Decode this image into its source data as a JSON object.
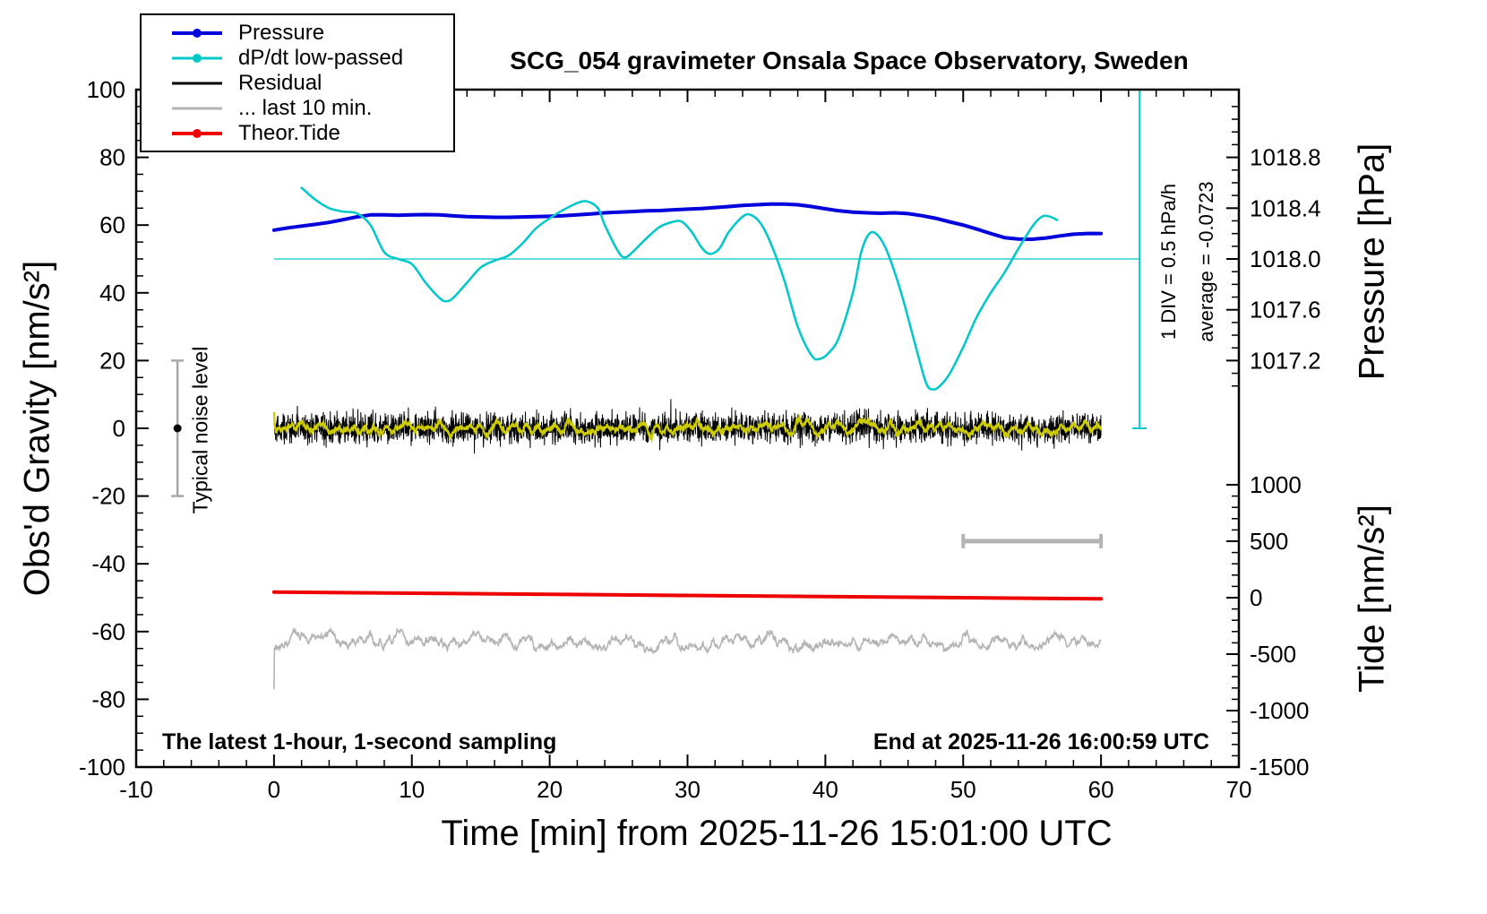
{
  "title": "SCG_054 gravimeter Onsala Space Observatory, Sweden",
  "notes": {
    "left": "The latest 1-hour, 1-second sampling",
    "right": "End at 2025-11-26 16:00:59 UTC"
  },
  "legend": {
    "items": [
      {
        "label": "Pressure",
        "color": "#0000dd",
        "dot": true,
        "thick": true
      },
      {
        "label": "dP/dt low-passed",
        "color": "#00c8c8",
        "dot": true,
        "thick": false
      },
      {
        "label": "Residual",
        "color": "#000000",
        "dot": false,
        "thick": false
      },
      {
        "label": "... last 10 min.",
        "color": "#b4b4b4",
        "dot": false,
        "thick": false
      },
      {
        "label": "Theor.Tide",
        "color": "#ee0000",
        "dot": true,
        "thick": true
      }
    ]
  },
  "chart_data": {
    "type": "line",
    "title": "SCG_054 gravimeter Onsala Space Observatory, Sweden",
    "x_axis": {
      "label": "Time [min] from 2025-11-26 15:01:00 UTC",
      "range": [
        -10,
        70
      ],
      "major_ticks": [
        -10,
        0,
        10,
        20,
        30,
        40,
        50,
        60,
        70
      ],
      "major_labels": [
        "-10",
        "0",
        "10",
        "20",
        "30",
        "40",
        "50",
        "60",
        "70"
      ],
      "minor_step": 2
    },
    "y_left": {
      "label": "Obs'd Gravity [nm/s²]",
      "range": [
        -100,
        100
      ],
      "major_ticks": [
        -100,
        -80,
        -60,
        -40,
        -20,
        0,
        20,
        40,
        60,
        80,
        100
      ],
      "major_labels": [
        "-100",
        "-80",
        "-60",
        "-40",
        "-20",
        "0",
        "20",
        "40",
        "60",
        "80",
        "100"
      ],
      "minor_step": 5
    },
    "y_right_pressure": {
      "label": "Pressure [hPa]",
      "major_ticks": [
        1017.2,
        1017.6,
        1018.0,
        1018.4,
        1018.8
      ],
      "major_labels": [
        "1017.2",
        "1017.6",
        "1018.0",
        "1018.4",
        "1018.8"
      ],
      "minor_step": 0.1,
      "minor_range": [
        1017.0,
        1019.2
      ],
      "value_ref": 1018.0,
      "left_ref": 50,
      "left_per_unit": 37.5
    },
    "y_right_tide": {
      "label": "Tide [nm/s²]",
      "major_ticks": [
        1000,
        500,
        0,
        -500,
        -1000,
        -1500
      ],
      "major_labels": [
        "1000",
        "500",
        "0",
        "-500",
        "-1000",
        "-1500"
      ],
      "minor_step": 100,
      "minor_range": [
        -1500,
        1000
      ],
      "left_ref": -50,
      "left_per_unit": 0.0333333
    },
    "series": [
      {
        "name": "Pressure",
        "kind": "pressure_line",
        "color": "#0000dd",
        "width": 4,
        "x_start": 0,
        "x_step": 1,
        "values_hpa": [
          1018.227,
          1018.245,
          1018.259,
          1018.272,
          1018.288,
          1018.309,
          1018.331,
          1018.347,
          1018.347,
          1018.344,
          1018.347,
          1018.349,
          1018.347,
          1018.339,
          1018.333,
          1018.331,
          1018.328,
          1018.328,
          1018.331,
          1018.333,
          1018.336,
          1018.341,
          1018.347,
          1018.355,
          1018.363,
          1018.368,
          1018.373,
          1018.379,
          1018.381,
          1018.387,
          1018.392,
          1018.397,
          1018.405,
          1018.413,
          1018.421,
          1018.427,
          1018.432,
          1018.432,
          1018.427,
          1018.413,
          1018.395,
          1018.379,
          1018.368,
          1018.363,
          1018.36,
          1018.363,
          1018.357,
          1018.341,
          1018.32,
          1018.293,
          1018.267,
          1018.235,
          1018.2,
          1018.168,
          1018.157,
          1018.155,
          1018.165,
          1018.181,
          1018.195,
          1018.2,
          1018.2
        ]
      },
      {
        "name": "dP/dt low-passed",
        "kind": "smooth_points",
        "color": "#00c8c8",
        "width": 2.5,
        "units": "left axis units; zero line at 50; scale 1 DIV = 0.5 hPa/h",
        "points": [
          [
            2,
            71
          ],
          [
            3,
            67.5
          ],
          [
            4,
            65
          ],
          [
            5,
            64
          ],
          [
            6,
            63.5
          ],
          [
            7,
            60
          ],
          [
            8,
            52
          ],
          [
            9,
            50
          ],
          [
            10,
            48.5
          ],
          [
            11,
            43
          ],
          [
            12,
            38.5
          ],
          [
            12.5,
            37.5
          ],
          [
            13,
            38.5
          ],
          [
            14,
            43
          ],
          [
            15,
            47.5
          ],
          [
            16,
            49.5
          ],
          [
            17,
            51
          ],
          [
            18,
            54.5
          ],
          [
            19,
            59
          ],
          [
            20,
            62
          ],
          [
            21,
            64.5
          ],
          [
            22,
            66.5
          ],
          [
            22.7,
            67
          ],
          [
            23.5,
            65
          ],
          [
            24,
            60
          ],
          [
            25,
            52
          ],
          [
            25.5,
            50.5
          ],
          [
            26,
            52
          ],
          [
            27,
            56
          ],
          [
            28,
            59.5
          ],
          [
            29,
            61
          ],
          [
            29.6,
            61
          ],
          [
            30.3,
            58
          ],
          [
            31,
            53.5
          ],
          [
            31.6,
            51.5
          ],
          [
            32.3,
            53
          ],
          [
            33,
            58
          ],
          [
            34,
            62.5
          ],
          [
            34.6,
            63
          ],
          [
            35.3,
            60.5
          ],
          [
            36,
            55
          ],
          [
            37,
            44
          ],
          [
            38,
            30
          ],
          [
            39,
            21.5
          ],
          [
            39.6,
            20.5
          ],
          [
            40.3,
            22.5
          ],
          [
            41,
            27
          ],
          [
            42,
            40
          ],
          [
            42.6,
            52
          ],
          [
            43.2,
            57.5
          ],
          [
            43.8,
            57
          ],
          [
            44.5,
            52
          ],
          [
            45.5,
            40
          ],
          [
            46.5,
            25
          ],
          [
            47.3,
            13.5
          ],
          [
            47.8,
            11.5
          ],
          [
            48.3,
            12.5
          ],
          [
            49,
            16
          ],
          [
            50,
            24
          ],
          [
            51,
            33
          ],
          [
            52,
            40
          ],
          [
            53,
            46
          ],
          [
            54,
            53
          ],
          [
            55,
            59.5
          ],
          [
            55.7,
            62.5
          ],
          [
            56.3,
            62.5
          ],
          [
            56.8,
            61.5
          ]
        ]
      },
      {
        "name": "Residual",
        "kind": "noise",
        "color": "#000000",
        "width": 1,
        "center_left": 0,
        "std_left": 2.2,
        "spike_prob": 0.006,
        "spike_scale": 1.8,
        "n": 3600,
        "x_from": 0,
        "x_to": 60,
        "seed": 42
      },
      {
        "name": "Residual smoothed",
        "kind": "smoothed_noise",
        "color": "#cccc00",
        "width": 2.2,
        "derived_from": "Residual",
        "window_samples": 25,
        "gain": 2.2
      },
      {
        "name": "... last 10 min.",
        "kind": "offset_noise",
        "color": "#b4b4b4",
        "width": 1.6,
        "center_left": -63,
        "n": 1800,
        "x_from": 0,
        "x_to": 60,
        "seed": 7
      },
      {
        "name": "Theor.Tide",
        "kind": "tide_line",
        "color": "#ee0000",
        "width": 4,
        "points_tide": [
          [
            0,
            50
          ],
          [
            10,
            40
          ],
          [
            20,
            30
          ],
          [
            30,
            20
          ],
          [
            40,
            10
          ],
          [
            50,
            0
          ],
          [
            60,
            -10
          ]
        ]
      }
    ],
    "annotations": {
      "noise_bar": {
        "x": -7,
        "y_from": -20,
        "y_to": 20,
        "dot_y": 0,
        "label": "Typical noise level",
        "color": "#a8a8a8"
      },
      "zero_line": {
        "y": 50,
        "x_from": 0,
        "x_to": 62.8,
        "color": "#00c8c8"
      },
      "div_scale": {
        "x": 62.8,
        "y_from": 0,
        "y_to": 100,
        "label": "1 DIV = 0.5 hPa/h",
        "average_label": "average = -0.0723",
        "color": "#00c8c8"
      },
      "time_scale_bar": {
        "x_from": 50,
        "x_to": 60,
        "y": -33.3,
        "color": "#b4b4b4"
      }
    }
  }
}
